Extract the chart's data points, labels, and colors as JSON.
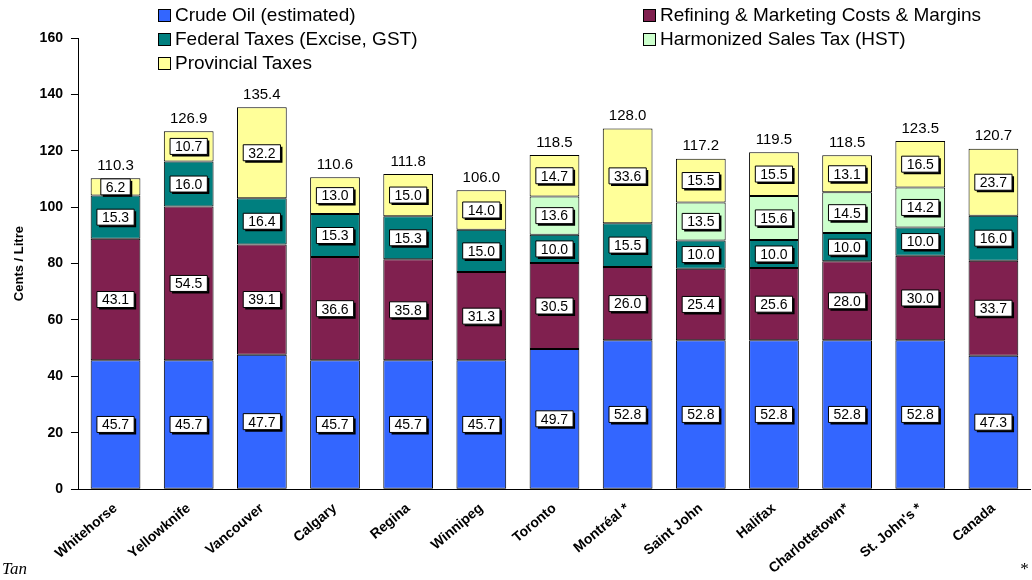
{
  "chart_data": {
    "type": "bar",
    "stacked": true,
    "ylabel": "Cents / Litre",
    "categories": [
      "Whitehorse",
      "Yellowknife",
      "Vancouver",
      "Calgary",
      "Regina",
      "Winnipeg",
      "Toronto",
      "Montréal *",
      "Saint John",
      "Halifax",
      "Charlottetown*",
      "St. John's *",
      "Canada"
    ],
    "series": [
      {
        "name": "Crude Oil (estimated)",
        "color": "#3366ff",
        "values": [
          45.7,
          45.7,
          47.7,
          45.7,
          45.7,
          45.7,
          49.7,
          52.8,
          52.8,
          52.8,
          52.8,
          52.8,
          47.3
        ],
        "value_labels": [
          "45.7",
          "45.7",
          "47.7",
          "45.7",
          "45.7",
          "45.7",
          "49.7",
          "52.8",
          "52.8",
          "52.8",
          "52.8",
          "52.8",
          "47.3"
        ]
      },
      {
        "name": "Refining & Marketing Costs & Margins",
        "color": "#80204f",
        "values": [
          43.1,
          54.5,
          39.1,
          36.6,
          35.8,
          31.3,
          30.5,
          26.0,
          25.4,
          25.6,
          28.0,
          30.0,
          33.7
        ],
        "value_labels": [
          "43.1",
          "54.5",
          "39.1",
          "36.6",
          "35.8",
          "31.3",
          "30.5",
          "26.0",
          "25.4",
          "25.6",
          "28.0",
          "30.0",
          "33.7"
        ]
      },
      {
        "name": "Federal Taxes (Excise, GST)",
        "color": "#007f7f",
        "values": [
          15.3,
          16.0,
          16.4,
          15.3,
          15.3,
          15.0,
          10.0,
          15.5,
          10.0,
          10.0,
          10.0,
          10.0,
          16.0
        ],
        "value_labels": [
          "15.3",
          "16.0",
          "16.4",
          "15.3",
          "15.3",
          "15.0",
          "10.0",
          "15.5",
          "10.0",
          "10.0",
          "10.0",
          "10.0",
          "16.0"
        ]
      },
      {
        "name": "Harmonized Sales Tax (HST)",
        "color": "#ccffcc",
        "values": [
          null,
          null,
          null,
          null,
          null,
          null,
          13.6,
          null,
          13.5,
          15.6,
          14.5,
          14.2,
          null
        ],
        "value_labels": [
          null,
          null,
          null,
          null,
          null,
          null,
          "13.6",
          null,
          "13.5",
          "15.6",
          "14.5",
          "14.2",
          null
        ]
      },
      {
        "name": "Provincial Taxes",
        "color": "#ffff99",
        "values": [
          6.2,
          10.7,
          32.2,
          13.0,
          15.0,
          14.0,
          14.7,
          33.6,
          15.5,
          15.5,
          13.1,
          16.5,
          23.7
        ],
        "value_labels": [
          "6.2",
          "10.7",
          "32.2",
          "13.0",
          "15.0",
          "14.0",
          "14.7",
          "33.6",
          "15.5",
          "15.5",
          "13.1",
          "16.5",
          "23.7"
        ]
      }
    ],
    "totals": [
      "110.3",
      "126.9",
      "135.4",
      "110.6",
      "111.8",
      "106.0",
      "118.5",
      "128.0",
      "117.2",
      "119.5",
      "118.5",
      "123.5",
      "120.7"
    ],
    "ylim": [
      0,
      160
    ],
    "yticks": [
      0,
      20,
      40,
      60,
      80,
      100,
      120,
      140,
      160
    ],
    "grid": false,
    "legend": "top",
    "annotations": [
      "Tan",
      "*"
    ]
  }
}
